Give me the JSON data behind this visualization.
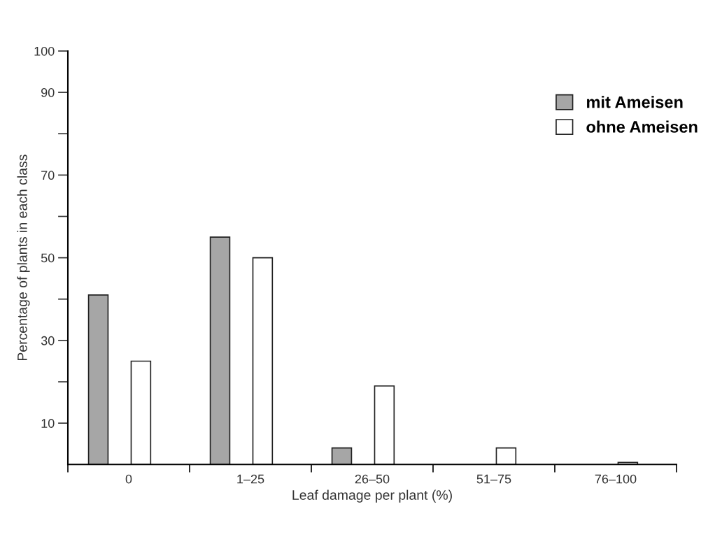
{
  "chart_data": {
    "type": "bar",
    "xlabel": "Leaf damage per plant (%)",
    "ylabel": "Percentage of plants in each class",
    "categories": [
      "0",
      "1–25",
      "26–50",
      "51–75",
      "76–100"
    ],
    "series": [
      {
        "name": "mit Ameisen",
        "color": "#a6a6a6",
        "values": [
          41,
          55,
          4,
          0,
          0
        ]
      },
      {
        "name": "ohne Ameisen",
        "color": "#ffffff",
        "values": [
          25,
          50,
          19,
          4,
          0.5
        ]
      }
    ],
    "ylim": [
      0,
      100
    ],
    "yticks": [
      {
        "value": 10,
        "label": "10"
      },
      {
        "value": 20,
        "label": null
      },
      {
        "value": 30,
        "label": "30"
      },
      {
        "value": 40,
        "label": null
      },
      {
        "value": 50,
        "label": "50"
      },
      {
        "value": 60,
        "label": null
      },
      {
        "value": 70,
        "label": "70"
      },
      {
        "value": 80,
        "label": null
      },
      {
        "value": 90,
        "label": "90"
      },
      {
        "value": 100,
        "label": "100"
      }
    ],
    "legend": "top right",
    "grid": false
  }
}
